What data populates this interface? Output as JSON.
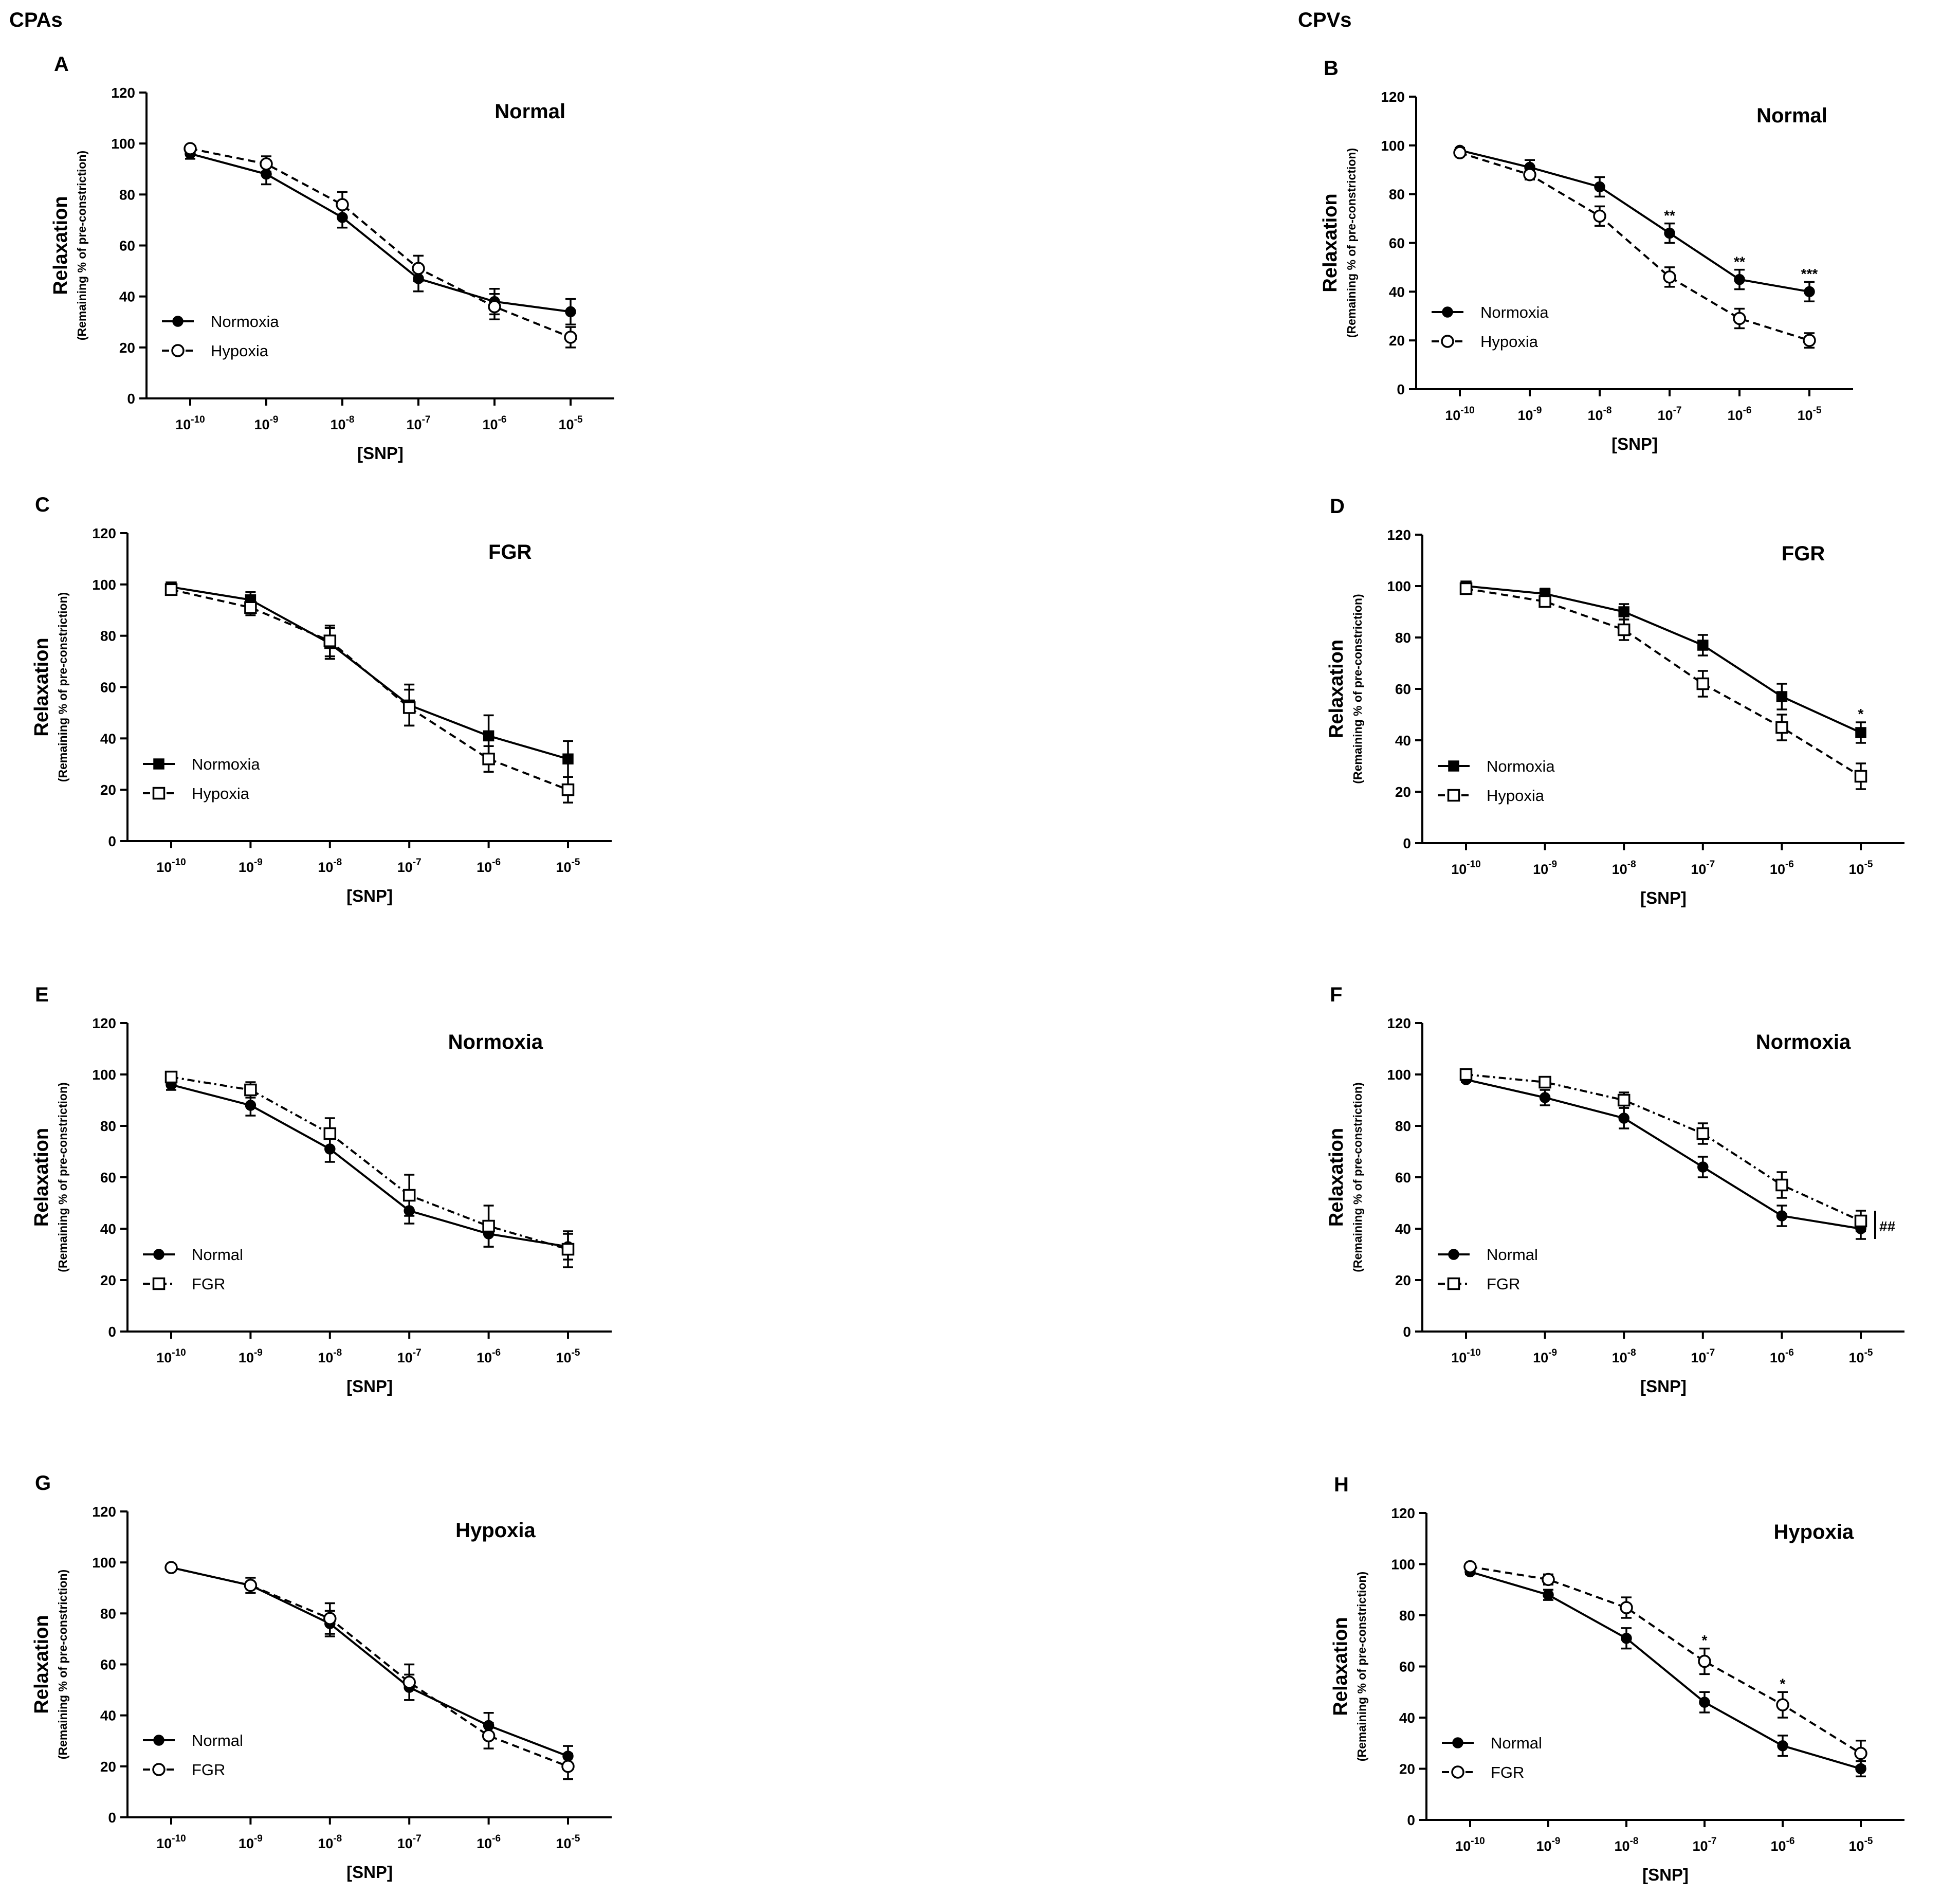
{
  "figure": {
    "group_labels": [
      "CPAs",
      "CPVs"
    ]
  },
  "chart_data": [
    {
      "panel": "A",
      "type": "line",
      "title": "Normal",
      "xlabel": "[SNP]",
      "ylabel": "Relaxation",
      "ylabel_sub": "(Remaining % of pre-constriction)",
      "categories": [
        "10^-10",
        "10^-9",
        "10^-8",
        "10^-7",
        "10^-6",
        "10^-5"
      ],
      "xtick_base": "10",
      "xtick_exponents": [
        "-10",
        "-9",
        "-8",
        "-7",
        "-6",
        "-5"
      ],
      "ylim": [
        0,
        120
      ],
      "yticks": [
        0,
        20,
        40,
        60,
        80,
        100,
        120
      ],
      "legend_position": "bottom-left",
      "series": [
        {
          "name": "Normoxia",
          "marker": "filled-circle",
          "line": "solid",
          "values": [
            96,
            88,
            71,
            47,
            38,
            34
          ],
          "errors": [
            2,
            4,
            4,
            5,
            5,
            5
          ]
        },
        {
          "name": "Hypoxia",
          "marker": "open-circle",
          "line": "dashed",
          "values": [
            98,
            92,
            76,
            51,
            36,
            24
          ],
          "errors": [
            1,
            3,
            5,
            5,
            5,
            4
          ]
        }
      ],
      "annotations": []
    },
    {
      "panel": "B",
      "type": "line",
      "title": "Normal",
      "xlabel": "[SNP]",
      "ylabel": "Relaxation",
      "ylabel_sub": "(Remaining % of pre-constriction)",
      "categories": [
        "10^-10",
        "10^-9",
        "10^-8",
        "10^-7",
        "10^-6",
        "10^-5"
      ],
      "xtick_base": "10",
      "xtick_exponents": [
        "-10",
        "-9",
        "-8",
        "-7",
        "-6",
        "-5"
      ],
      "ylim": [
        0,
        120
      ],
      "yticks": [
        0,
        20,
        40,
        60,
        80,
        100,
        120
      ],
      "legend_position": "bottom-left",
      "series": [
        {
          "name": "Normoxia",
          "marker": "filled-circle",
          "line": "solid",
          "values": [
            98,
            91,
            83,
            64,
            45,
            40
          ],
          "errors": [
            1,
            3,
            4,
            4,
            4,
            4
          ]
        },
        {
          "name": "Hypoxia",
          "marker": "open-circle",
          "line": "dashed",
          "values": [
            97,
            88,
            71,
            46,
            29,
            20
          ],
          "errors": [
            1,
            2,
            4,
            4,
            4,
            3
          ]
        }
      ],
      "annotations": [
        {
          "x_index": 3,
          "y": 71,
          "text": "**"
        },
        {
          "x_index": 4,
          "y": 52,
          "text": "**"
        },
        {
          "x_index": 5,
          "y": 47,
          "text": "***"
        }
      ]
    },
    {
      "panel": "C",
      "type": "line",
      "title": "FGR",
      "xlabel": "[SNP]",
      "ylabel": "Relaxation",
      "ylabel_sub": "(Remaining % of pre-constriction)",
      "categories": [
        "10^-10",
        "10^-9",
        "10^-8",
        "10^-7",
        "10^-6",
        "10^-5"
      ],
      "xtick_base": "10",
      "xtick_exponents": [
        "-10",
        "-9",
        "-8",
        "-7",
        "-6",
        "-5"
      ],
      "ylim": [
        0,
        120
      ],
      "yticks": [
        0,
        20,
        40,
        60,
        80,
        100,
        120
      ],
      "legend_position": "bottom-left",
      "series": [
        {
          "name": "Normoxia",
          "marker": "filled-square",
          "line": "solid",
          "values": [
            99,
            94,
            77,
            53,
            41,
            32
          ],
          "errors": [
            1,
            3,
            6,
            8,
            8,
            7
          ]
        },
        {
          "name": "Hypoxia",
          "marker": "open-square",
          "line": "dashed",
          "values": [
            98,
            91,
            78,
            52,
            32,
            20
          ],
          "errors": [
            1,
            3,
            6,
            7,
            5,
            5
          ]
        }
      ],
      "annotations": []
    },
    {
      "panel": "D",
      "type": "line",
      "title": "FGR",
      "xlabel": "[SNP]",
      "ylabel": "Relaxation",
      "ylabel_sub": "(Remaining % of pre-constriction)",
      "categories": [
        "10^-10",
        "10^-9",
        "10^-8",
        "10^-7",
        "10^-6",
        "10^-5"
      ],
      "xtick_base": "10",
      "xtick_exponents": [
        "-10",
        "-9",
        "-8",
        "-7",
        "-6",
        "-5"
      ],
      "ylim": [
        0,
        120
      ],
      "yticks": [
        0,
        20,
        40,
        60,
        80,
        100,
        120
      ],
      "legend_position": "bottom-left",
      "series": [
        {
          "name": "Normoxia",
          "marker": "filled-square",
          "line": "solid",
          "values": [
            100,
            97,
            90,
            77,
            57,
            43
          ],
          "errors": [
            1,
            2,
            3,
            4,
            5,
            4
          ]
        },
        {
          "name": "Hypoxia",
          "marker": "open-square",
          "line": "dashed",
          "values": [
            99,
            94,
            83,
            62,
            45,
            26
          ],
          "errors": [
            1,
            2,
            4,
            5,
            5,
            5
          ]
        }
      ],
      "annotations": [
        {
          "x_index": 5,
          "y": 50,
          "text": "*"
        }
      ]
    },
    {
      "panel": "E",
      "type": "line",
      "title": "Normoxia",
      "xlabel": "[SNP]",
      "ylabel": "Relaxation",
      "ylabel_sub": "(Remaining % of pre-constriction)",
      "categories": [
        "10^-10",
        "10^-9",
        "10^-8",
        "10^-7",
        "10^-6",
        "10^-5"
      ],
      "xtick_base": "10",
      "xtick_exponents": [
        "-10",
        "-9",
        "-8",
        "-7",
        "-6",
        "-5"
      ],
      "ylim": [
        0,
        120
      ],
      "yticks": [
        0,
        20,
        40,
        60,
        80,
        100,
        120
      ],
      "legend_position": "bottom-left",
      "series": [
        {
          "name": "Normal",
          "marker": "filled-circle",
          "line": "solid",
          "values": [
            96,
            88,
            71,
            47,
            38,
            33
          ],
          "errors": [
            2,
            4,
            5,
            5,
            5,
            5
          ]
        },
        {
          "name": "FGR",
          "marker": "open-square",
          "line": "dashdot",
          "values": [
            99,
            94,
            77,
            53,
            41,
            32
          ],
          "errors": [
            1,
            3,
            6,
            8,
            8,
            7
          ]
        }
      ],
      "annotations": []
    },
    {
      "panel": "F",
      "type": "line",
      "title": "Normoxia",
      "xlabel": "[SNP]",
      "ylabel": "Relaxation",
      "ylabel_sub": "(Remaining % of pre-constriction)",
      "categories": [
        "10^-10",
        "10^-9",
        "10^-8",
        "10^-7",
        "10^-6",
        "10^-5"
      ],
      "xtick_base": "10",
      "xtick_exponents": [
        "-10",
        "-9",
        "-8",
        "-7",
        "-6",
        "-5"
      ],
      "ylim": [
        0,
        120
      ],
      "yticks": [
        0,
        20,
        40,
        60,
        80,
        100,
        120
      ],
      "legend_position": "bottom-left",
      "series": [
        {
          "name": "Normal",
          "marker": "filled-circle",
          "line": "solid",
          "values": [
            98,
            91,
            83,
            64,
            45,
            40
          ],
          "errors": [
            1,
            3,
            4,
            4,
            4,
            4
          ]
        },
        {
          "name": "FGR",
          "marker": "open-square",
          "line": "dashdot",
          "values": [
            100,
            97,
            90,
            77,
            57,
            43
          ],
          "errors": [
            1,
            2,
            3,
            4,
            5,
            4
          ]
        }
      ],
      "annotations": [
        {
          "x_index": 5,
          "y": 41,
          "text": "##",
          "side": "right"
        }
      ]
    },
    {
      "panel": "G",
      "type": "line",
      "title": "Hypoxia",
      "xlabel": "[SNP]",
      "ylabel": "Relaxation",
      "ylabel_sub": "(Remaining % of pre-constriction)",
      "categories": [
        "10^-10",
        "10^-9",
        "10^-8",
        "10^-7",
        "10^-6",
        "10^-5"
      ],
      "xtick_base": "10",
      "xtick_exponents": [
        "-10",
        "-9",
        "-8",
        "-7",
        "-6",
        "-5"
      ],
      "ylim": [
        0,
        120
      ],
      "yticks": [
        0,
        20,
        40,
        60,
        80,
        100,
        120
      ],
      "legend_position": "bottom-left",
      "series": [
        {
          "name": "Normal",
          "marker": "filled-circle",
          "line": "solid",
          "values": [
            98,
            91,
            76,
            51,
            36,
            24
          ],
          "errors": [
            1,
            3,
            5,
            5,
            5,
            4
          ]
        },
        {
          "name": "FGR",
          "marker": "open-circle",
          "line": "dashed",
          "values": [
            98,
            91,
            78,
            53,
            32,
            20
          ],
          "errors": [
            1,
            3,
            6,
            7,
            5,
            5
          ]
        }
      ],
      "annotations": []
    },
    {
      "panel": "H",
      "type": "line",
      "title": "Hypoxia",
      "xlabel": "[SNP]",
      "ylabel": "Relaxation",
      "ylabel_sub": "(Remaining % of pre-constriction)",
      "categories": [
        "10^-10",
        "10^-9",
        "10^-8",
        "10^-7",
        "10^-6",
        "10^-5"
      ],
      "xtick_base": "10",
      "xtick_exponents": [
        "-10",
        "-9",
        "-8",
        "-7",
        "-6",
        "-5"
      ],
      "ylim": [
        0,
        120
      ],
      "yticks": [
        0,
        20,
        40,
        60,
        80,
        100,
        120
      ],
      "legend_position": "bottom-left",
      "series": [
        {
          "name": "Normal",
          "marker": "filled-circle",
          "line": "solid",
          "values": [
            97,
            88,
            71,
            46,
            29,
            20
          ],
          "errors": [
            1,
            2,
            4,
            4,
            4,
            3
          ]
        },
        {
          "name": "FGR",
          "marker": "open-circle",
          "line": "dashed",
          "values": [
            99,
            94,
            83,
            62,
            45,
            26
          ],
          "errors": [
            1,
            2,
            4,
            5,
            5,
            5
          ]
        }
      ],
      "annotations": [
        {
          "x_index": 3,
          "y": 70,
          "text": "*"
        },
        {
          "x_index": 4,
          "y": 53,
          "text": "*"
        }
      ]
    }
  ]
}
